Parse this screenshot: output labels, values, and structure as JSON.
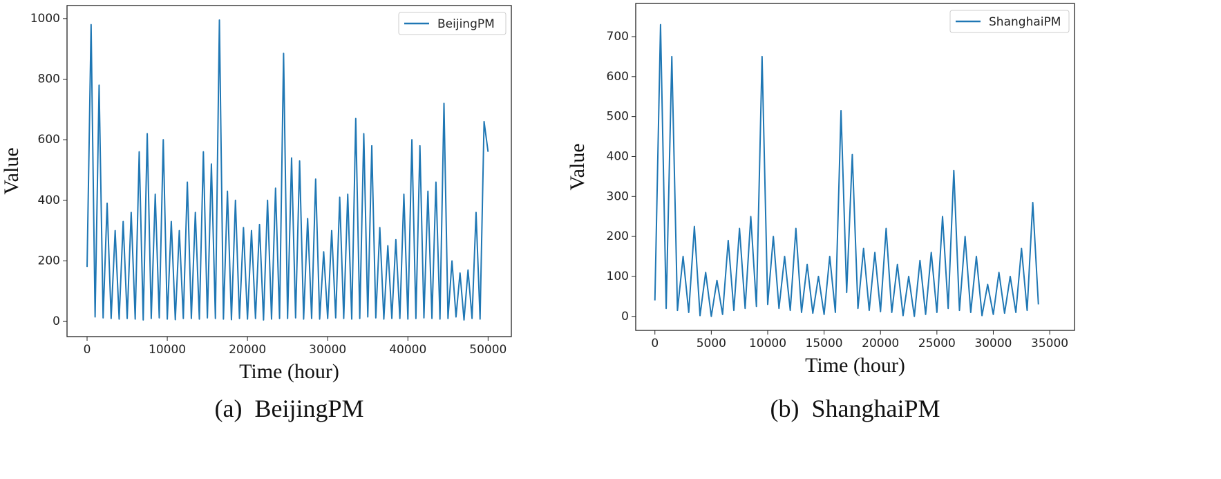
{
  "chart_data": [
    {
      "type": "line",
      "caption": "(a)  BeijingPM",
      "xlabel": "Time (hour)",
      "ylabel": "Value",
      "xlim": [
        -2500,
        52900
      ],
      "ylim": [
        -50,
        1043
      ],
      "xticks": [
        0,
        10000,
        20000,
        30000,
        40000,
        50000
      ],
      "yticks": [
        0,
        200,
        400,
        600,
        800,
        1000
      ],
      "legend": "upper right",
      "x": [
        0,
        500,
        1000,
        1500,
        2000,
        2500,
        3000,
        3500,
        4000,
        4500,
        5000,
        5500,
        6000,
        6500,
        7000,
        7500,
        8000,
        8500,
        9000,
        9500,
        10000,
        10500,
        11000,
        11500,
        12000,
        12500,
        13000,
        13500,
        14000,
        14500,
        15000,
        15500,
        16000,
        16500,
        17000,
        17500,
        18000,
        18500,
        19000,
        19500,
        20000,
        20500,
        21000,
        21500,
        22000,
        22500,
        23000,
        23500,
        24000,
        24500,
        25000,
        25500,
        26000,
        26500,
        27000,
        27500,
        28000,
        28500,
        29000,
        29500,
        30000,
        30500,
        31000,
        31500,
        32000,
        32500,
        33000,
        33500,
        34000,
        34500,
        35000,
        35500,
        36000,
        36500,
        37000,
        37500,
        38000,
        38500,
        39000,
        39500,
        40000,
        40500,
        41000,
        41500,
        42000,
        42500,
        43000,
        43500,
        44000,
        44500,
        45000,
        45500,
        46000,
        46500,
        47000,
        47500,
        48000,
        48500,
        49000,
        49500,
        50000
      ],
      "series": [
        {
          "name": "BeijingPM",
          "color": "#1f77b4",
          "values": [
            180,
            980,
            15,
            780,
            12,
            390,
            10,
            300,
            8,
            330,
            10,
            360,
            8,
            560,
            5,
            620,
            10,
            420,
            12,
            600,
            8,
            330,
            6,
            300,
            10,
            460,
            10,
            360,
            8,
            560,
            12,
            520,
            10,
            995,
            8,
            430,
            6,
            400,
            10,
            310,
            8,
            300,
            10,
            320,
            5,
            400,
            8,
            440,
            10,
            885,
            10,
            540,
            12,
            530,
            8,
            340,
            10,
            470,
            8,
            230,
            10,
            300,
            12,
            410,
            10,
            420,
            8,
            670,
            10,
            620,
            15,
            580,
            12,
            310,
            8,
            250,
            10,
            270,
            10,
            420,
            8,
            600,
            10,
            580,
            12,
            430,
            10,
            460,
            8,
            720,
            10,
            200,
            15,
            160,
            5,
            170,
            10,
            360,
            8,
            660,
            560
          ]
        }
      ]
    },
    {
      "type": "line",
      "caption": "(b)  ShanghaiPM",
      "xlabel": "Time (hour)",
      "ylabel": "Value",
      "xlim": [
        -1700,
        37200
      ],
      "ylim": [
        -35,
        783
      ],
      "xticks": [
        0,
        5000,
        10000,
        15000,
        20000,
        25000,
        30000,
        35000
      ],
      "yticks": [
        0,
        100,
        200,
        300,
        400,
        500,
        600,
        700
      ],
      "legend": "upper right",
      "x": [
        0,
        500,
        1000,
        1500,
        2000,
        2500,
        3000,
        3500,
        4000,
        4500,
        5000,
        5500,
        6000,
        6500,
        7000,
        7500,
        8000,
        8500,
        9000,
        9500,
        10000,
        10500,
        11000,
        11500,
        12000,
        12500,
        13000,
        13500,
        14000,
        14500,
        15000,
        15500,
        16000,
        16500,
        17000,
        17500,
        18000,
        18500,
        19000,
        19500,
        20000,
        20500,
        21000,
        21500,
        22000,
        22500,
        23000,
        23500,
        24000,
        24500,
        25000,
        25500,
        26000,
        26500,
        27000,
        27500,
        28000,
        28500,
        29000,
        29500,
        30000,
        30500,
        31000,
        31500,
        32000,
        32500,
        33000,
        33500,
        34000
      ],
      "series": [
        {
          "name": "ShanghaiPM",
          "color": "#1f77b4",
          "values": [
            40,
            730,
            20,
            650,
            15,
            150,
            10,
            225,
            2,
            110,
            0,
            90,
            5,
            190,
            15,
            220,
            20,
            250,
            25,
            650,
            30,
            200,
            20,
            150,
            15,
            220,
            10,
            130,
            8,
            100,
            5,
            150,
            10,
            515,
            60,
            405,
            20,
            170,
            15,
            160,
            12,
            220,
            10,
            130,
            2,
            100,
            0,
            140,
            5,
            160,
            10,
            250,
            20,
            365,
            15,
            200,
            10,
            150,
            2,
            80,
            5,
            110,
            8,
            100,
            10,
            170,
            15,
            285,
            30
          ]
        }
      ]
    }
  ]
}
